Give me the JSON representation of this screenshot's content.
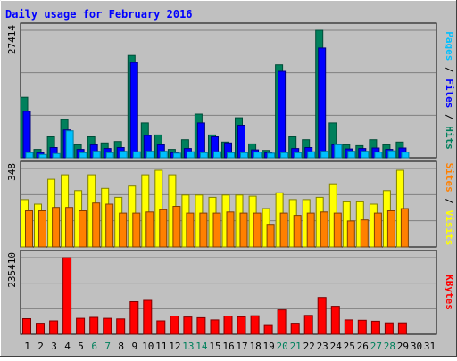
{
  "colors": {
    "frame_bg": "#c0c0c0",
    "plot_bg": "#c0c0c0",
    "grid": "#808080",
    "title": "#0000ff",
    "hits": "#00805c",
    "files": "#0000ff",
    "pages": "#00c0ff",
    "visits": "#ffff00",
    "sites": "#ff8000",
    "kbytes": "#ff0000",
    "weekend_label": "#00805c",
    "weekday_label": "#000000"
  },
  "chart_data": {
    "type": "bar",
    "title": "Daily usage for February 2016",
    "x": {
      "days": [
        "1",
        "2",
        "3",
        "4",
        "5",
        "6",
        "7",
        "8",
        "9",
        "10",
        "11",
        "12",
        "13",
        "14",
        "15",
        "16",
        "17",
        "18",
        "19",
        "20",
        "21",
        "22",
        "23",
        "24",
        "25",
        "26",
        "27",
        "28",
        "29",
        "30",
        "31"
      ],
      "weekend_days": [
        "6",
        "7",
        "13",
        "14",
        "20",
        "21",
        "27",
        "28"
      ]
    },
    "panels": [
      {
        "name": "hits-files-pages",
        "ymax_label": "27414",
        "ylim": [
          0,
          27414
        ],
        "grid": true,
        "legend_right": [
          {
            "text": "Pages",
            "color_key": "pages"
          },
          {
            "text": " / ",
            "color_key": "weekday_label"
          },
          {
            "text": "Files",
            "color_key": "files"
          },
          {
            "text": " / ",
            "color_key": "weekday_label"
          },
          {
            "text": "Hits",
            "color_key": "hits"
          }
        ],
        "series": [
          {
            "name": "Hits",
            "color_key": "hits",
            "values": [
              13000,
              1800,
              4500,
              8200,
              2800,
              4500,
              3200,
              3500,
              22000,
              7500,
              4900,
              1800,
              3900,
              9400,
              4900,
              3400,
              8600,
              3000,
              1600,
              20000,
              4500,
              3900,
              27414,
              7500,
              2800,
              2600,
              3900,
              2800,
              3400,
              0,
              0
            ]
          },
          {
            "name": "Files",
            "color_key": "files",
            "values": [
              10000,
              1100,
              2200,
              6000,
              1800,
              2800,
              2000,
              2200,
              20500,
              4800,
              2800,
              1100,
              2000,
              7500,
              4500,
              3200,
              7000,
              1700,
              1100,
              18600,
              2000,
              2200,
              23600,
              2800,
              1900,
              2000,
              2100,
              1800,
              2100,
              0,
              0
            ]
          },
          {
            "name": "Pages",
            "color_key": "pages",
            "values": [
              1100,
              700,
              900,
              5800,
              1100,
              1400,
              1100,
              1400,
              1300,
              1400,
              1400,
              1000,
              1300,
              1100,
              1300,
              1100,
              1100,
              1200,
              1000,
              1100,
              1100,
              1300,
              1400,
              2800,
              1400,
              1400,
              1200,
              1500,
              1200,
              0,
              0
            ]
          }
        ]
      },
      {
        "name": "visits-sites",
        "ymax_label": "348",
        "ylim": [
          0,
          348
        ],
        "grid": true,
        "legend_right": [
          {
            "text": "Sites",
            "color_key": "sites"
          },
          {
            "text": " / ",
            "color_key": "weekday_label"
          },
          {
            "text": "Visits",
            "color_key": "visits"
          }
        ],
        "series": [
          {
            "name": "Visits",
            "color_key": "visits",
            "values": [
              210,
              190,
              300,
              320,
              250,
              320,
              260,
              220,
              270,
              320,
              340,
              320,
              230,
              230,
              220,
              230,
              230,
              225,
              170,
              240,
              210,
              210,
              220,
              280,
              200,
              200,
              190,
              250,
              340,
              0,
              0
            ]
          },
          {
            "name": "Sites",
            "color_key": "sites",
            "values": [
              160,
              160,
              175,
              175,
              160,
              195,
              190,
              150,
              150,
              155,
              165,
              180,
              150,
              150,
              150,
              155,
              150,
              150,
              100,
              150,
              140,
              150,
              155,
              150,
              115,
              120,
              150,
              160,
              170,
              0,
              0
            ]
          }
        ]
      },
      {
        "name": "kbytes",
        "ymax_label": "235410",
        "ylim": [
          0,
          235410
        ],
        "grid": true,
        "legend_right": [
          {
            "text": "KBytes",
            "color_key": "kbytes"
          }
        ],
        "series": [
          {
            "name": "KBytes",
            "color_key": "kbytes",
            "values": [
              48000,
              34000,
              41000,
              235410,
              49000,
              52000,
              49000,
              47000,
              100000,
              104000,
              41000,
              56000,
              53000,
              51000,
              44000,
              56000,
              54000,
              57000,
              27000,
              75000,
              34000,
              58000,
              113000,
              86000,
              44000,
              43000,
              40000,
              35000,
              35000,
              0,
              0
            ]
          }
        ]
      }
    ]
  }
}
